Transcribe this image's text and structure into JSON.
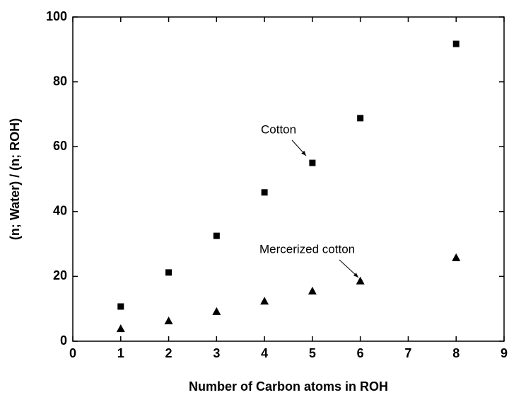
{
  "chart_data": {
    "type": "scatter",
    "xlabel": "Number of Carbon atoms in ROH",
    "ylabel": "(n; Water) / (n; ROH)",
    "xlim": [
      0,
      9
    ],
    "xticks": [
      0,
      1,
      2,
      3,
      4,
      5,
      6,
      7,
      8,
      9
    ],
    "ylim": [
      0,
      100
    ],
    "yticks": [
      0,
      20,
      40,
      60,
      80,
      100
    ],
    "series": [
      {
        "name": "Cotton",
        "color": "#000000",
        "marker": "square",
        "x": [
          1,
          2,
          3,
          4,
          5,
          6,
          8
        ],
        "values": [
          10.7,
          21.2,
          32.5,
          45.9,
          55,
          68.8,
          91.7
        ]
      },
      {
        "name": "Mercerized cotton",
        "color": "#000000",
        "marker": "triangle",
        "x": [
          1,
          2,
          3,
          4,
          5,
          6,
          8
        ],
        "values": [
          3.9,
          6.3,
          9.2,
          12.4,
          15.5,
          18.6,
          25.8
        ]
      }
    ]
  }
}
